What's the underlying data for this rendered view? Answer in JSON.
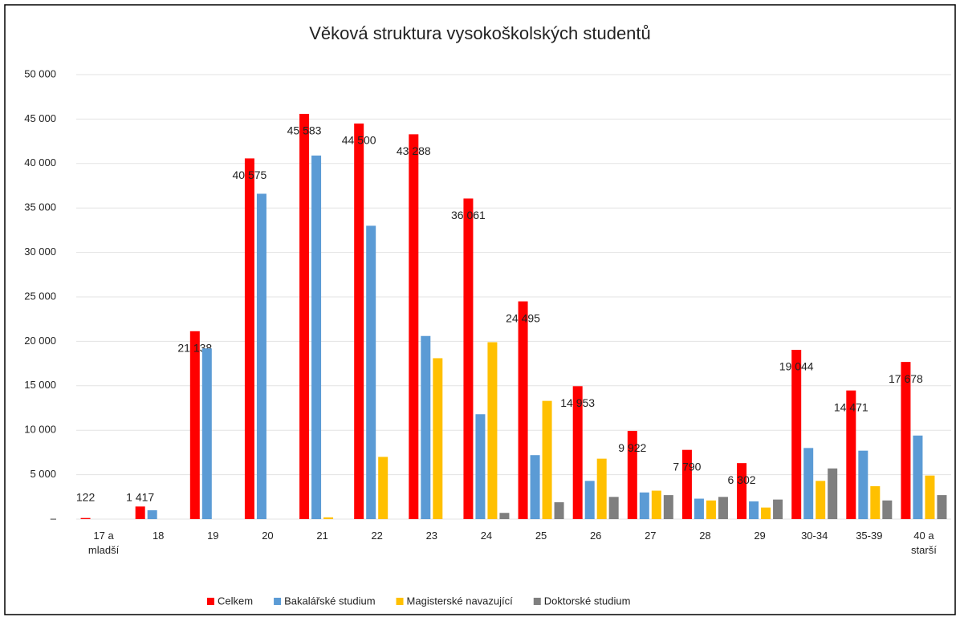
{
  "chart_data": {
    "type": "bar",
    "title": "Věková struktura vysokoškolských studentů",
    "categories": [
      "17 a mladší",
      "18",
      "19",
      "20",
      "21",
      "22",
      "23",
      "24",
      "25",
      "26",
      "27",
      "28",
      "29",
      "30-34",
      "35-39",
      "40 a starší"
    ],
    "series": [
      {
        "name": "Celkem",
        "color": "#ff0000",
        "values": [
          122,
          1417,
          21138,
          40575,
          45583,
          44500,
          43288,
          36061,
          24495,
          14953,
          9922,
          7790,
          6302,
          19044,
          14471,
          17678
        ],
        "value_labels": [
          "122",
          "1 417",
          "21 138",
          "40 575",
          "45 583",
          "44 500",
          "43 288",
          "36 061",
          "24 495",
          "14 953",
          "9 922",
          "7 790",
          "6 302",
          "19 044",
          "14 471",
          "17 678"
        ]
      },
      {
        "name": "Bakalářské studium",
        "color": "#5b9bd5",
        "values": [
          0,
          1000,
          19200,
          36600,
          40900,
          33000,
          20600,
          11800,
          7200,
          4300,
          3000,
          2300,
          2000,
          8000,
          7700,
          9400
        ]
      },
      {
        "name": "Magisterské navazující",
        "color": "#ffc000",
        "values": [
          0,
          0,
          0,
          0,
          200,
          7000,
          18100,
          19900,
          13300,
          6800,
          3200,
          2100,
          1300,
          4300,
          3700,
          4900
        ]
      },
      {
        "name": "Doktorské  studium",
        "color": "#7f7f7f",
        "values": [
          0,
          0,
          0,
          0,
          0,
          0,
          0,
          700,
          1900,
          2500,
          2700,
          2500,
          2200,
          5700,
          2100,
          2700
        ]
      }
    ],
    "ylim": [
      0,
      50000
    ],
    "yticks": [
      {
        "value": 0,
        "label": "–"
      },
      {
        "value": 5000,
        "label": "5 000"
      },
      {
        "value": 10000,
        "label": "10 000"
      },
      {
        "value": 15000,
        "label": "15 000"
      },
      {
        "value": 20000,
        "label": "20 000"
      },
      {
        "value": 25000,
        "label": "25 000"
      },
      {
        "value": 30000,
        "label": "30 000"
      },
      {
        "value": 35000,
        "label": "35 000"
      },
      {
        "value": 40000,
        "label": "40 000"
      },
      {
        "value": 45000,
        "label": "45 000"
      },
      {
        "value": 50000,
        "label": "50 000"
      }
    ],
    "grid": true,
    "legend": "bottom"
  }
}
